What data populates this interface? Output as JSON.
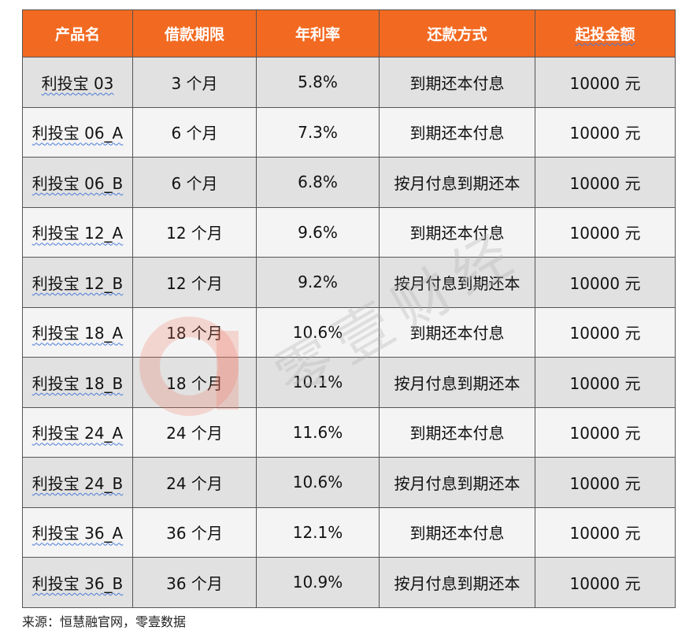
{
  "table": {
    "header": [
      "产品名",
      "借款期限",
      "年利率",
      "还款方式",
      "起投金额"
    ],
    "rows": [
      [
        "利投宝 03",
        "3 个月",
        "5.8%",
        "到期还本付息",
        "10000 元"
      ],
      [
        "利投宝 06_A",
        "6 个月",
        "7.3%",
        "到期还本付息",
        "10000 元"
      ],
      [
        "利投宝 06_B",
        "6 个月",
        "6.8%",
        "按月付息到期还本",
        "10000 元"
      ],
      [
        "利投宝 12_A",
        "12 个月",
        "9.6%",
        "到期还本付息",
        "10000 元"
      ],
      [
        "利投宝 12_B",
        "12 个月",
        "9.2%",
        "按月付息到期还本",
        "10000 元"
      ],
      [
        "利投宝 18_A",
        "18 个月",
        "10.6%",
        "到期还本付息",
        "10000 元"
      ],
      [
        "利投宝 18_B",
        "18 个月",
        "10.1%",
        "按月付息到期还本",
        "10000 元"
      ],
      [
        "利投宝 24_A",
        "24 个月",
        "11.6%",
        "到期还本付息",
        "10000 元"
      ],
      [
        "利投宝 24_B",
        "24 个月",
        "10.6%",
        "按月付息到期还本",
        "10000 元"
      ],
      [
        "利投宝 36_A",
        "36 个月",
        "12.1%",
        "到期还本付息",
        "10000 元"
      ],
      [
        "利投宝 36_B",
        "36 个月",
        "10.9%",
        "按月付息到期还本",
        "10000 元"
      ]
    ]
  },
  "watermark": "零壹财经",
  "source": "来源：恒慧融官网，零壹数据"
}
